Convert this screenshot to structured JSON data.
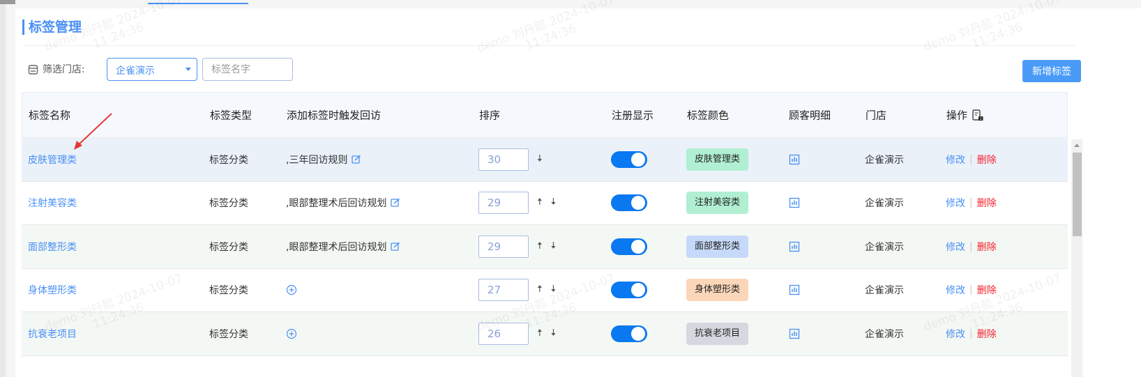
{
  "page": {
    "title": "标签管理"
  },
  "filter": {
    "label": "筛选门店:",
    "store_value": "企雀演示",
    "tag_name_placeholder": "标签名字",
    "add_button": "新增标签"
  },
  "table": {
    "headers": [
      "标签名称",
      "标签类型",
      "添加标签时触发回访",
      "排序",
      "注册显示",
      "标签颜色",
      "顾客明细",
      "门店",
      "操作"
    ],
    "rows": [
      {
        "name": "皮肤管理类",
        "type": "标签分类",
        "callback": ",三年回访规则",
        "sort": "30",
        "up": false,
        "down": true,
        "register_display": true,
        "tag_label": "皮肤管理类",
        "tag_color": "#b1efd2",
        "store": "企雀演示",
        "edit": "修改",
        "delete": "删除"
      },
      {
        "name": "注射美容类",
        "type": "标签分类",
        "callback": ",眼部整理术后回访规划",
        "sort": "29",
        "up": true,
        "down": true,
        "register_display": true,
        "tag_label": "注射美容类",
        "tag_color": "#b1efd2",
        "store": "企雀演示",
        "edit": "修改",
        "delete": "删除"
      },
      {
        "name": "面部整形类",
        "type": "标签分类",
        "callback": ",眼部整理术后回访规划",
        "sort": "29",
        "up": true,
        "down": true,
        "register_display": true,
        "tag_label": "面部整形类",
        "tag_color": "#c6d9fa",
        "store": "企雀演示",
        "edit": "修改",
        "delete": "删除"
      },
      {
        "name": "身体塑形类",
        "type": "标签分类",
        "callback": "",
        "sort": "27",
        "up": true,
        "down": true,
        "register_display": true,
        "tag_label": "身体塑形类",
        "tag_color": "#fbd6b9",
        "store": "企雀演示",
        "edit": "修改",
        "delete": "删除"
      },
      {
        "name": "抗衰老项目",
        "type": "标签分类",
        "callback": "",
        "sort": "26",
        "up": true,
        "down": true,
        "register_display": true,
        "tag_label": "抗衰老项目",
        "tag_color": "#d6d8df",
        "store": "企雀演示",
        "edit": "修改",
        "delete": "删除"
      }
    ]
  },
  "watermark": {
    "line1": "demo 刘丹懿 2024-10-07",
    "line2": "11:24:36"
  },
  "colors": {
    "accent": "#4a90f5",
    "danger": "#f5222d",
    "toggle_on": "#0a78f0"
  }
}
